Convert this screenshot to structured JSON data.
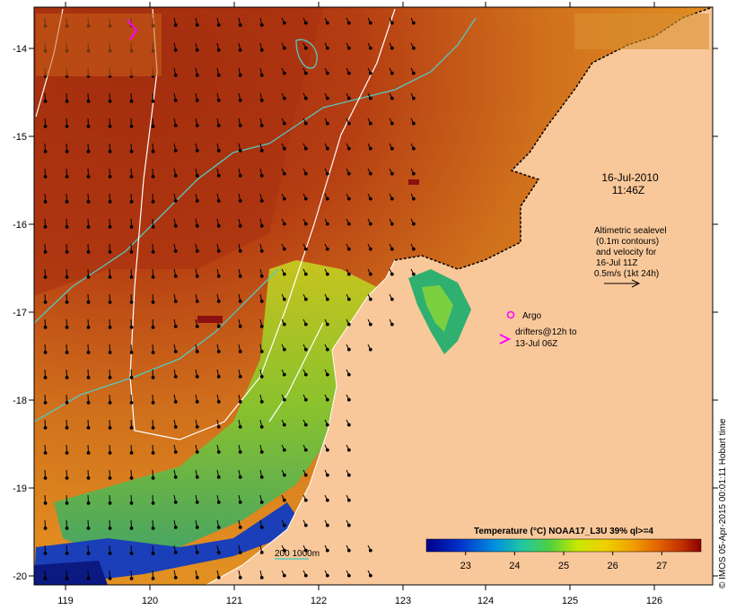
{
  "map": {
    "timestamp": {
      "date": "16-Jul-2010",
      "time": "11:46Z"
    },
    "altimetry_note": [
      "Altimetric sealevel",
      "(0.1m contours)",
      "and velocity for",
      "16-Jul 11Z",
      "0.5m/s (1kt 24h)"
    ],
    "argo_label": "Argo",
    "drifters_label": [
      "drifters@12h to",
      "13-Jul 06Z"
    ],
    "bathy_label": "200  1000m",
    "credit": "© IMOS 05-Apr-2015 00:01:11 Hobart time",
    "lon_ticks": [
      "119",
      "120",
      "121",
      "122",
      "123",
      "124",
      "125",
      "126"
    ],
    "lat_ticks": [
      "-14",
      "-15",
      "-16",
      "-17",
      "-18",
      "-19",
      "-20"
    ],
    "colorbar": {
      "title": "Temperature (°C) NOAA17_L3U 39% ql>=4",
      "ticks": [
        "23",
        "24",
        "25",
        "26",
        "27"
      ],
      "range": [
        22.2,
        27.8
      ]
    },
    "colors": {
      "land": "#f9c89a",
      "sea_warm": "#b33a12",
      "sea_mid": "#d8781c",
      "sea_cool": "#2b8b4f",
      "contour_200": "#55c8c0",
      "contour_sealevel": "#ffffff",
      "drifter": "#ff00ff"
    }
  }
}
